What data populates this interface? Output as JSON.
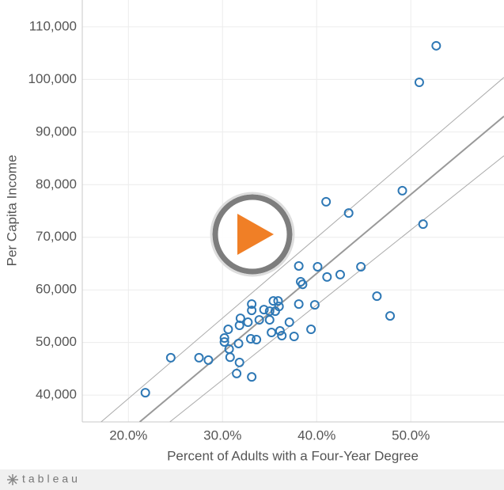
{
  "chart_data": {
    "type": "scatter",
    "x_label": "Percent of Adults with a Four-Year Degree",
    "y_label": "Per Capita Income",
    "color": "#2e78b5",
    "grid": true,
    "xlim": [
      15.1,
      59.9
    ],
    "ylim": [
      34900,
      115100
    ],
    "xticks": [
      {
        "value": 20,
        "label": "20.0%"
      },
      {
        "value": 30,
        "label": "30.0%"
      },
      {
        "value": 40,
        "label": "40.0%"
      },
      {
        "value": 50,
        "label": "50.0%"
      }
    ],
    "yticks": [
      {
        "value": 40000,
        "label": "40,000"
      },
      {
        "value": 50000,
        "label": "50,000"
      },
      {
        "value": 60000,
        "label": "60,000"
      },
      {
        "value": 70000,
        "label": "70,000"
      },
      {
        "value": 80000,
        "label": "80,000"
      },
      {
        "value": 90000,
        "label": "90,000"
      },
      {
        "value": 100000,
        "label": "100,000"
      },
      {
        "value": 110000,
        "label": "110,000"
      }
    ],
    "x": [
      21.8,
      24.5,
      27.5,
      28.5,
      30.2,
      30.2,
      30.6,
      30.7,
      30.8,
      31.5,
      31.7,
      31.8,
      31.8,
      31.9,
      32.7,
      33.1,
      33.1,
      33.0,
      33.1,
      33.6,
      33.9,
      34.4,
      35.0,
      35.0,
      35.2,
      35.4,
      35.9,
      36.0,
      35.6,
      36.1,
      36.3,
      37.1,
      37.6,
      38.1,
      38.1,
      38.3,
      38.5,
      39.4,
      39.8,
      40.1,
      41.1,
      41.0,
      42.5,
      43.4,
      44.7,
      46.4,
      47.8,
      49.1,
      51.3,
      50.9,
      52.7
    ],
    "y": [
      40450,
      47100,
      47100,
      46650,
      50850,
      50100,
      52500,
      48750,
      47200,
      44100,
      49800,
      46200,
      53250,
      54600,
      53850,
      57300,
      56100,
      50700,
      43450,
      50550,
      54300,
      56250,
      55950,
      54300,
      51900,
      57900,
      57900,
      56850,
      55950,
      52200,
      51300,
      53850,
      51150,
      64550,
      57300,
      61550,
      61050,
      52500,
      57150,
      64400,
      62450,
      76750,
      62900,
      74600,
      64400,
      58800,
      55050,
      78850,
      72500,
      99450,
      106400
    ],
    "trend_line": {
      "color": "#999999",
      "x": [
        21.2,
        59.9
      ],
      "y": [
        34900,
        93000
      ]
    },
    "upper_band": {
      "color": "#aaaaaa",
      "x": [
        17.1,
        59.9
      ],
      "y": [
        34900,
        100400
      ]
    },
    "lower_band": {
      "color": "#aaaaaa",
      "x": [
        24.4,
        59.9
      ],
      "y": [
        34900,
        85500
      ]
    }
  },
  "footer": {
    "brand": "tableau"
  }
}
